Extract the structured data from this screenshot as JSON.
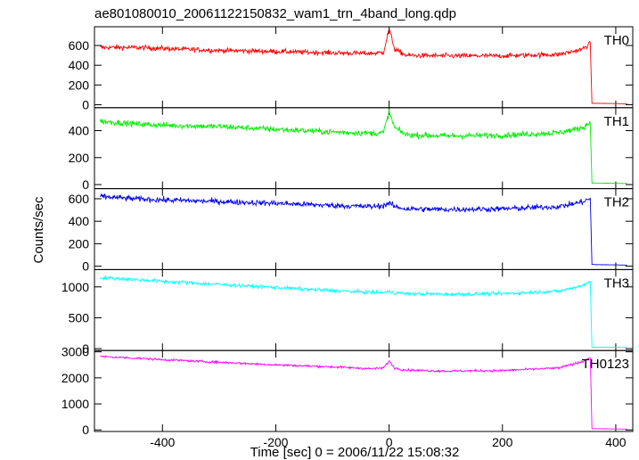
{
  "chart_data": {
    "type": "line",
    "title": "ae801080010_20061122150832_wam1_trn_4band_long.qdp",
    "xlabel": "Time [sec] 0 = 2006/11/22 15:08:32",
    "ylabel": "Counts/sec",
    "xlim": [
      -520,
      430
    ],
    "xticks": [
      -400,
      -200,
      0,
      200,
      400
    ],
    "grid": false,
    "legend": "none",
    "panels": [
      {
        "name": "TH0",
        "color": "#ff0000",
        "ylim": [
          -30,
          790
        ],
        "yticks": [
          0,
          200,
          400,
          600
        ],
        "x": [
          -510,
          -450,
          -400,
          -300,
          -200,
          -100,
          -30,
          -10,
          0,
          10,
          30,
          100,
          200,
          300,
          340,
          355,
          358,
          420
        ],
        "y": [
          580,
          580,
          570,
          550,
          540,
          525,
          520,
          530,
          770,
          560,
          500,
          495,
          495,
          510,
          560,
          620,
          15,
          10
        ],
        "noise": 35
      },
      {
        "name": "TH1",
        "color": "#00ee00",
        "ylim": [
          -30,
          570
        ],
        "yticks": [
          0,
          200,
          400
        ],
        "x": [
          -510,
          -450,
          -400,
          -300,
          -200,
          -100,
          -30,
          -10,
          0,
          10,
          30,
          100,
          200,
          300,
          340,
          355,
          358,
          420
        ],
        "y": [
          470,
          450,
          440,
          430,
          410,
          390,
          380,
          385,
          540,
          420,
          370,
          360,
          365,
          385,
          420,
          460,
          12,
          8
        ],
        "noise": 30
      },
      {
        "name": "TH2",
        "color": "#0000ee",
        "ylim": [
          -30,
          690
        ],
        "yticks": [
          0,
          200,
          400,
          600
        ],
        "x": [
          -510,
          -450,
          -400,
          -300,
          -200,
          -100,
          -30,
          -10,
          0,
          10,
          30,
          100,
          200,
          300,
          340,
          355,
          358,
          420
        ],
        "y": [
          620,
          600,
          590,
          575,
          560,
          540,
          530,
          540,
          560,
          530,
          510,
          505,
          510,
          530,
          570,
          600,
          15,
          10
        ],
        "noise": 35
      },
      {
        "name": "TH3",
        "color": "#00ffff",
        "ylim": [
          -30,
          1280
        ],
        "yticks": [
          0,
          500,
          1000
        ],
        "x": [
          -510,
          -450,
          -400,
          -300,
          -200,
          -100,
          -30,
          -10,
          0,
          10,
          30,
          100,
          200,
          300,
          340,
          355,
          358,
          420
        ],
        "y": [
          1150,
          1120,
          1090,
          1040,
          990,
          940,
          910,
          910,
          920,
          905,
          890,
          880,
          890,
          930,
          1020,
          1080,
          25,
          20
        ],
        "noise": 40
      },
      {
        "name": "TH0123",
        "color": "#ff00ff",
        "ylim": [
          -60,
          3050
        ],
        "yticks": [
          0,
          1000,
          2000,
          3000
        ],
        "x": [
          -510,
          -450,
          -400,
          -300,
          -200,
          -100,
          -30,
          -10,
          0,
          10,
          30,
          100,
          200,
          300,
          340,
          355,
          358,
          420
        ],
        "y": [
          2820,
          2760,
          2700,
          2600,
          2500,
          2420,
          2350,
          2380,
          2650,
          2370,
          2300,
          2260,
          2280,
          2380,
          2620,
          2780,
          50,
          30
        ],
        "noise": 60
      }
    ]
  }
}
